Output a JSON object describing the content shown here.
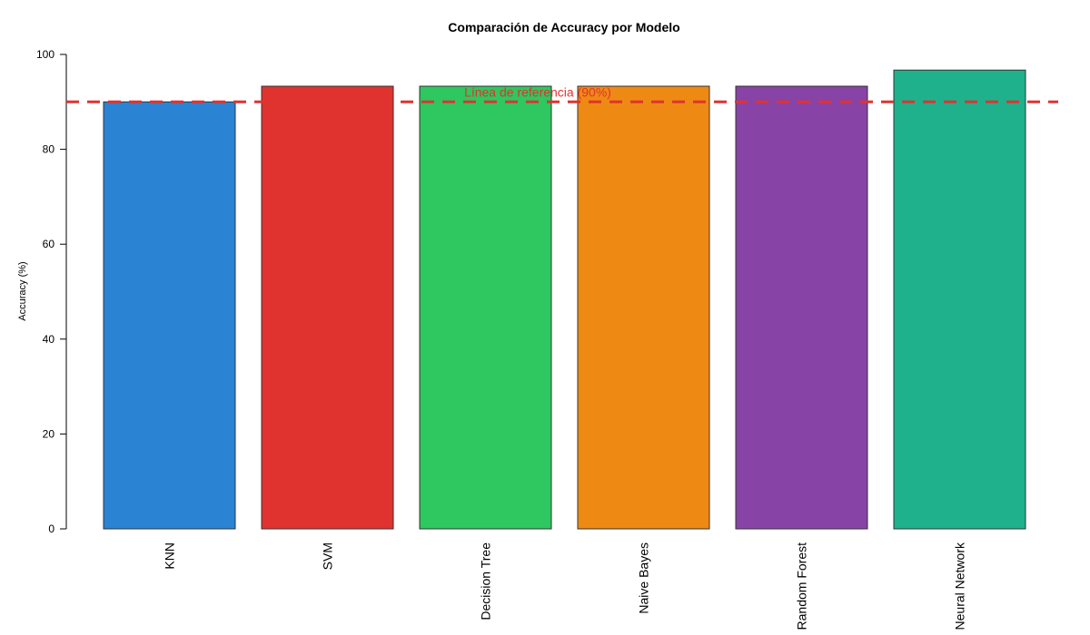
{
  "chart_data": {
    "type": "bar",
    "title": "Comparación de Accuracy por Modelo",
    "xlabel": "",
    "ylabel": "Accuracy (%)",
    "ylim": [
      0,
      100
    ],
    "yticks": [
      0,
      20,
      40,
      60,
      80,
      100
    ],
    "categories": [
      "KNN",
      "SVM",
      "Decision Tree",
      "Naive Bayes",
      "Random Forest",
      "Neural Network"
    ],
    "values": [
      90.0,
      93.3,
      93.3,
      93.3,
      93.3,
      96.7
    ],
    "colors": [
      "#2b83d4",
      "#e03330",
      "#2ec760",
      "#ee8a14",
      "#8843a7",
      "#1fb18c"
    ],
    "reference_line": {
      "value": 90,
      "label": "Línea de referencia (90%)",
      "color": "#e03330",
      "style": "dashed"
    },
    "grid": false,
    "legend": "none"
  }
}
